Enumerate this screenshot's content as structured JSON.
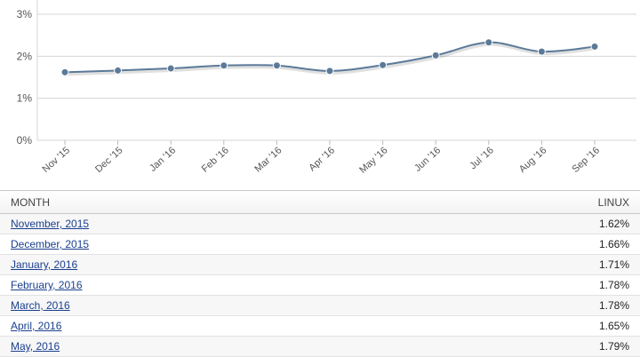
{
  "chart_data": {
    "type": "line",
    "categories": [
      "Nov '15",
      "Dec '15",
      "Jan '16",
      "Feb '16",
      "Mar '16",
      "Apr '16",
      "May '16",
      "Jun '16",
      "Jul '16",
      "Aug '16",
      "Sep '16"
    ],
    "series": [
      {
        "values": [
          1.62,
          1.66,
          1.71,
          1.78,
          1.78,
          1.65,
          1.79,
          2.02,
          2.33,
          2.11,
          2.23
        ]
      }
    ],
    "yticks": [
      "0%",
      "1%",
      "2%",
      "3%"
    ],
    "ylim": [
      0,
      3
    ],
    "grid": true,
    "line_color": "#5b7a99"
  },
  "table": {
    "headers": {
      "month": "MONTH",
      "linux": "LINUX"
    },
    "rows": [
      {
        "month": "November, 2015",
        "value": "1.62%"
      },
      {
        "month": "December, 2015",
        "value": "1.66%"
      },
      {
        "month": "January, 2016",
        "value": "1.71%"
      },
      {
        "month": "February, 2016",
        "value": "1.78%"
      },
      {
        "month": "March, 2016",
        "value": "1.78%"
      },
      {
        "month": "April, 2016",
        "value": "1.65%"
      },
      {
        "month": "May, 2016",
        "value": "1.79%"
      }
    ]
  }
}
